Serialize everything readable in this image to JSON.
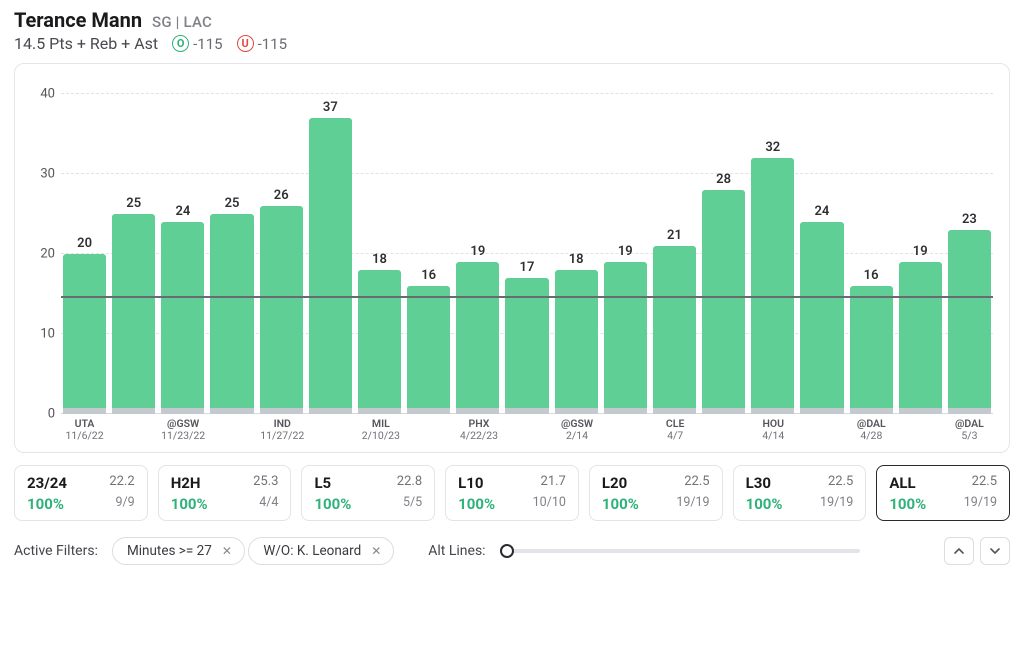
{
  "header": {
    "player_name": "Terance Mann",
    "position_team": "SG | LAC",
    "stat_line": "14.5 Pts + Reb + Ast",
    "over": {
      "letter": "O",
      "odds": "-115",
      "color": "#2fb37a"
    },
    "under": {
      "letter": "U",
      "odds": "-115",
      "color": "#e04a3f"
    }
  },
  "chart": {
    "type": "bar",
    "ymax": 42,
    "yticks": [
      0,
      10,
      20,
      30,
      40
    ],
    "threshold": 14.5,
    "bar_color": "#5fcf95",
    "bar_cap_color": "#c3c9ce",
    "grid_color": "#e1e1e6",
    "threshold_color": "#6a6a72",
    "background_color": "#ffffff",
    "label_fontsize": 13,
    "games": [
      {
        "opp": "UTA",
        "date": "11/6/22",
        "value": 20
      },
      {
        "opp": "",
        "date": "",
        "value": 25
      },
      {
        "opp": "@GSW",
        "date": "11/23/22",
        "value": 24
      },
      {
        "opp": "",
        "date": "",
        "value": 25
      },
      {
        "opp": "IND",
        "date": "11/27/22",
        "value": 26
      },
      {
        "opp": "",
        "date": "",
        "value": 37
      },
      {
        "opp": "MIL",
        "date": "2/10/23",
        "value": 18
      },
      {
        "opp": "",
        "date": "",
        "value": 16
      },
      {
        "opp": "PHX",
        "date": "4/22/23",
        "value": 19
      },
      {
        "opp": "",
        "date": "",
        "value": 17
      },
      {
        "opp": "@GSW",
        "date": "2/14",
        "value": 18
      },
      {
        "opp": "",
        "date": "",
        "value": 19
      },
      {
        "opp": "CLE",
        "date": "4/7",
        "value": 21
      },
      {
        "opp": "",
        "date": "",
        "value": 28
      },
      {
        "opp": "HOU",
        "date": "4/14",
        "value": 32
      },
      {
        "opp": "",
        "date": "",
        "value": 24
      },
      {
        "opp": "@DAL",
        "date": "4/28",
        "value": 16
      },
      {
        "opp": "",
        "date": "",
        "value": 19
      },
      {
        "opp": "@DAL",
        "date": "5/3",
        "value": 23
      }
    ]
  },
  "summary": {
    "hit_color": "#2fb37a",
    "pills": [
      {
        "label": "23/24",
        "avg": "22.2",
        "pct": "100%",
        "ratio": "9/9",
        "selected": false
      },
      {
        "label": "H2H",
        "avg": "25.3",
        "pct": "100%",
        "ratio": "4/4",
        "selected": false
      },
      {
        "label": "L5",
        "avg": "22.8",
        "pct": "100%",
        "ratio": "5/5",
        "selected": false
      },
      {
        "label": "L10",
        "avg": "21.7",
        "pct": "100%",
        "ratio": "10/10",
        "selected": false
      },
      {
        "label": "L20",
        "avg": "22.5",
        "pct": "100%",
        "ratio": "19/19",
        "selected": false
      },
      {
        "label": "L30",
        "avg": "22.5",
        "pct": "100%",
        "ratio": "19/19",
        "selected": false
      },
      {
        "label": "ALL",
        "avg": "22.5",
        "pct": "100%",
        "ratio": "19/19",
        "selected": true
      }
    ]
  },
  "filters": {
    "label": "Active Filters:",
    "chips": [
      {
        "text": "Minutes  >=  27"
      },
      {
        "text": "W/O: K. Leonard"
      }
    ],
    "alt_lines_label": "Alt Lines:",
    "slider_position_pct": 0
  }
}
